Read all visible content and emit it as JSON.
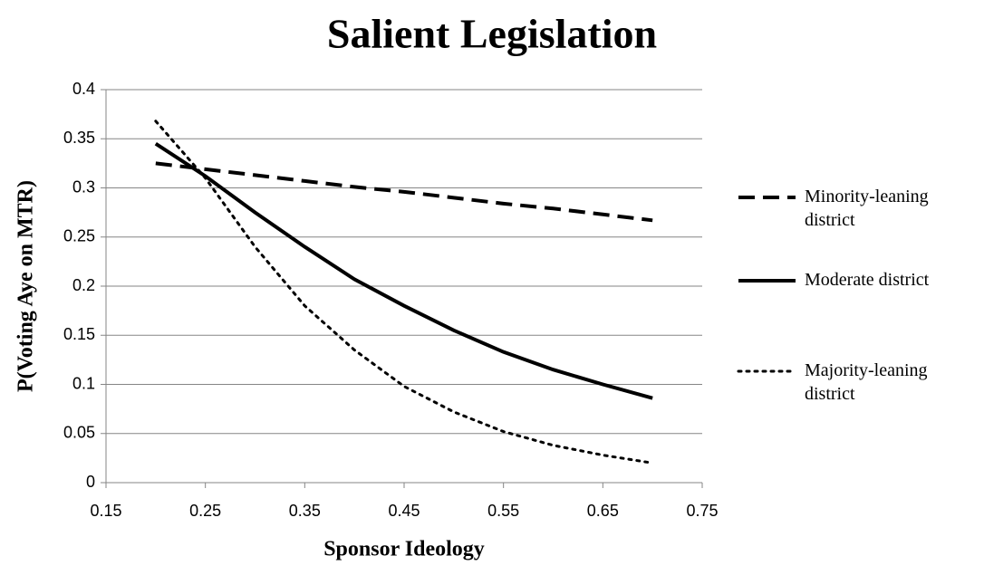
{
  "chart_data": {
    "type": "line",
    "title": "Salient Legislation",
    "x_label": "Sponsor Ideology",
    "y_label": "P(Voting Aye on MTR)",
    "x": [
      0.2,
      0.25,
      0.3,
      0.35,
      0.4,
      0.45,
      0.5,
      0.55,
      0.6,
      0.65,
      0.7
    ],
    "series": [
      {
        "name": "Minority-leaning district",
        "color": "#000000",
        "dash": "dashed",
        "values": [
          0.325,
          0.319,
          0.313,
          0.307,
          0.301,
          0.296,
          0.29,
          0.284,
          0.279,
          0.273,
          0.267
        ]
      },
      {
        "name": "Moderate district",
        "color": "#000000",
        "dash": "solid",
        "values": [
          0.345,
          0.312,
          0.275,
          0.24,
          0.207,
          0.18,
          0.155,
          0.133,
          0.115,
          0.1,
          0.086
        ]
      },
      {
        "name": "Majority-leaning district",
        "color": "#000000",
        "dash": "dotted",
        "values": [
          0.368,
          0.31,
          0.24,
          0.18,
          0.135,
          0.098,
          0.072,
          0.052,
          0.038,
          0.028,
          0.02
        ]
      }
    ],
    "xlim": [
      0.15,
      0.75
    ],
    "xticks": [
      0.15,
      0.25,
      0.35,
      0.45,
      0.55,
      0.65,
      0.75
    ],
    "ylim": [
      0,
      0.4
    ],
    "yticks": [
      0,
      0.05,
      0.1,
      0.15,
      0.2,
      0.25,
      0.3,
      0.35,
      0.4
    ],
    "grid": true,
    "legend": "right"
  }
}
